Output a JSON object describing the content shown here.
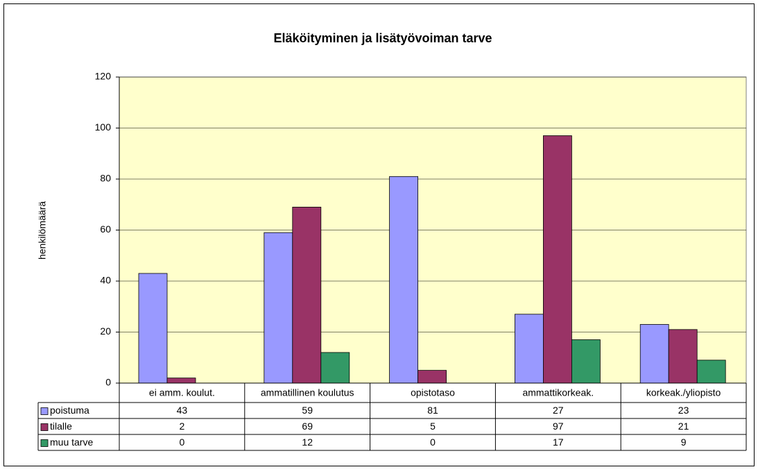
{
  "chart_data": {
    "type": "bar",
    "title": "Eläköityminen ja lisätyövoiman tarve",
    "y_label": "henkilömäärä",
    "categories": [
      "ei amm. koulut.",
      "ammatillinen koulutus",
      "opistotaso",
      "ammattikorkeak.",
      "korkeak./yliopisto"
    ],
    "series": [
      {
        "name": "poistuma",
        "color": "#9999FF",
        "values": [
          43,
          59,
          81,
          27,
          23
        ]
      },
      {
        "name": "tilalle",
        "color": "#993366",
        "values": [
          2,
          69,
          5,
          97,
          21
        ]
      },
      {
        "name": "muu tarve",
        "color": "#339966",
        "values": [
          0,
          12,
          0,
          17,
          9
        ]
      }
    ],
    "ylim": [
      0,
      120
    ],
    "yticks": [
      0,
      20,
      40,
      60,
      80,
      100,
      120
    ],
    "grid": true,
    "plot_background": "#FFFFCC",
    "data_table": true
  }
}
